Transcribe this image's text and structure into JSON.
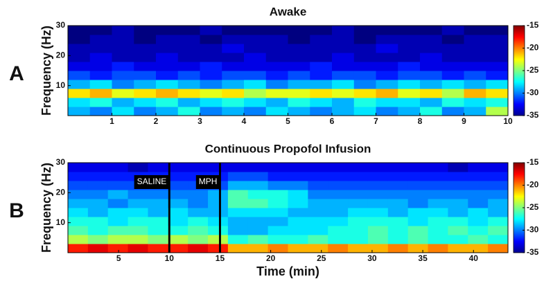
{
  "chart_data": [
    {
      "type": "heatmap",
      "panel_label": "A",
      "title": "Awake",
      "ylabel": "Frequency (Hz)",
      "xlim": [
        0,
        10
      ],
      "ylim": [
        0,
        30
      ],
      "xticks": [
        1,
        2,
        3,
        4,
        5,
        6,
        7,
        8,
        9,
        10
      ],
      "yticks": [
        10,
        20,
        30
      ],
      "colormap": "jet",
      "clim": [
        -35,
        -15
      ],
      "cticks": [
        -15,
        -20,
        -25,
        -30,
        -35
      ],
      "z": [
        [
          -29,
          -30,
          -28,
          -30,
          -29,
          -27,
          -30,
          -29,
          -30,
          -28,
          -29,
          -30,
          -29,
          -28,
          -30,
          -29,
          -27,
          -30,
          -29,
          -24
        ],
        [
          -28,
          -27,
          -29,
          -28,
          -27,
          -29,
          -28,
          -27,
          -28,
          -29,
          -27,
          -28,
          -29,
          -27,
          -28,
          -28,
          -29,
          -27,
          -28,
          -27
        ],
        [
          -22,
          -21,
          -23,
          -22,
          -21,
          -22,
          -23,
          -22,
          -24,
          -23,
          -23,
          -22,
          -23,
          -22,
          -21,
          -23,
          -22,
          -24,
          -21,
          -22
        ],
        [
          -29,
          -28,
          -30,
          -29,
          -28,
          -29,
          -30,
          -29,
          -28,
          -30,
          -29,
          -29,
          -28,
          -30,
          -29,
          -28,
          -29,
          -28,
          -29,
          -28
        ],
        [
          -31,
          -32,
          -31,
          -31,
          -32,
          -31,
          -32,
          -31,
          -31,
          -32,
          -31,
          -32,
          -31,
          -31,
          -32,
          -31,
          -31,
          -32,
          -31,
          -32
        ],
        [
          -33,
          -33,
          -32,
          -33,
          -33,
          -33,
          -32,
          -33,
          -33,
          -33,
          -33,
          -32,
          -33,
          -33,
          -33,
          -32,
          -33,
          -33,
          -33,
          -33
        ],
        [
          -34,
          -33,
          -34,
          -34,
          -33,
          -34,
          -34,
          -34,
          -33,
          -34,
          -34,
          -34,
          -33,
          -34,
          -34,
          -34,
          -33,
          -34,
          -34,
          -34
        ],
        [
          -34,
          -34,
          -34,
          -34,
          -34,
          -34,
          -34,
          -33,
          -34,
          -34,
          -34,
          -34,
          -34,
          -34,
          -33,
          -34,
          -34,
          -34,
          -34,
          -34
        ],
        [
          -35,
          -34,
          -34,
          -35,
          -34,
          -34,
          -35,
          -34,
          -34,
          -34,
          -35,
          -34,
          -34,
          -35,
          -34,
          -34,
          -34,
          -35,
          -34,
          -34
        ],
        [
          -35,
          -35,
          -34,
          -35,
          -35,
          -35,
          -34,
          -35,
          -35,
          -35,
          -35,
          -35,
          -34,
          -35,
          -35,
          -35,
          -35,
          -34,
          -35,
          -35
        ]
      ]
    },
    {
      "type": "heatmap",
      "panel_label": "B",
      "title": "Continuous Propofol Infusion",
      "ylabel": "Frequency (Hz)",
      "xlabel": "Time (min)",
      "xlim": [
        0,
        43.4
      ],
      "ylim": [
        0,
        30
      ],
      "xticks": [
        5,
        10,
        15,
        20,
        25,
        30,
        35,
        40
      ],
      "yticks": [
        10,
        20,
        30
      ],
      "colormap": "jet",
      "clim": [
        -35,
        -15
      ],
      "cticks": [
        -15,
        -20,
        -25,
        -30,
        -35
      ],
      "events": [
        {
          "x": 10,
          "label": "SALINE"
        },
        {
          "x": 15,
          "label": "MPH"
        }
      ],
      "z": [
        [
          -18,
          -17,
          -18,
          -17,
          -18,
          -18,
          -17,
          -18,
          -21,
          -21,
          -20,
          -21,
          -21,
          -20,
          -21,
          -21,
          -20,
          -21,
          -20,
          -21,
          -21,
          -20
        ],
        [
          -24,
          -25,
          -24,
          -24,
          -25,
          -24,
          -25,
          -24,
          -27,
          -26,
          -27,
          -27,
          -26,
          -27,
          -27,
          -26,
          -27,
          -26,
          -27,
          -27,
          -26,
          -27
        ],
        [
          -26,
          -27,
          -26,
          -26,
          -27,
          -27,
          -26,
          -27,
          -29,
          -29,
          -28,
          -28,
          -28,
          -27,
          -27,
          -26,
          -27,
          -26,
          -27,
          -26,
          -27,
          -26
        ],
        [
          -27,
          -27,
          -28,
          -27,
          -27,
          -28,
          -27,
          -28,
          -29,
          -29,
          -29,
          -28,
          -28,
          -28,
          -27,
          -27,
          -27,
          -28,
          -27,
          -27,
          -28,
          -27
        ],
        [
          -28,
          -29,
          -28,
          -28,
          -29,
          -28,
          -29,
          -29,
          -28,
          -28,
          -28,
          -29,
          -29,
          -29,
          -28,
          -28,
          -29,
          -28,
          -28,
          -29,
          -28,
          -29
        ],
        [
          -29,
          -29,
          -30,
          -29,
          -29,
          -29,
          -30,
          -29,
          -26,
          -26,
          -27,
          -28,
          -29,
          -29,
          -29,
          -29,
          -29,
          -30,
          -29,
          -29,
          -30,
          -29
        ],
        [
          -30,
          -30,
          -29,
          -30,
          -30,
          -30,
          -30,
          -29,
          -26,
          -27,
          -27,
          -28,
          -30,
          -30,
          -30,
          -30,
          -30,
          -30,
          -30,
          -30,
          -30,
          -30
        ],
        [
          -31,
          -31,
          -31,
          -31,
          -31,
          -31,
          -31,
          -31,
          -29,
          -29,
          -30,
          -30,
          -31,
          -31,
          -31,
          -31,
          -31,
          -31,
          -31,
          -31,
          -31,
          -31
        ],
        [
          -32,
          -32,
          -32,
          -32,
          -32,
          -32,
          -32,
          -32,
          -31,
          -31,
          -32,
          -32,
          -32,
          -32,
          -32,
          -32,
          -32,
          -32,
          -32,
          -32,
          -32,
          -32
        ],
        [
          -33,
          -33,
          -33,
          -34,
          -33,
          -33,
          -33,
          -33,
          -33,
          -33,
          -33,
          -33,
          -33,
          -33,
          -33,
          -33,
          -33,
          -33,
          -33,
          -34,
          -33,
          -33
        ]
      ]
    }
  ]
}
